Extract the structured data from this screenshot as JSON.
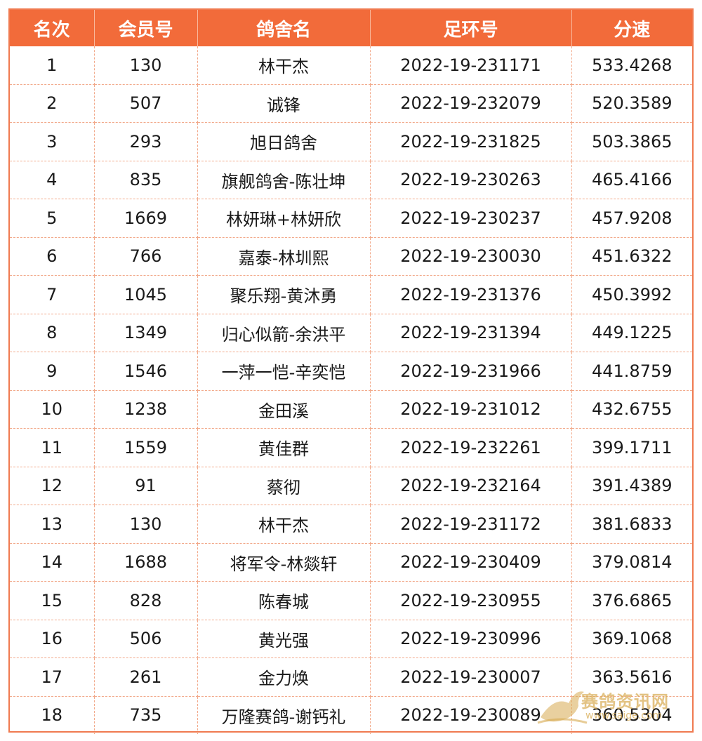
{
  "table": {
    "headers": [
      "名次",
      "会员号",
      "鸽舍名",
      "足环号",
      "分速"
    ],
    "rows": [
      [
        "1",
        "130",
        "林干杰",
        "2022-19-231171",
        "533.4268"
      ],
      [
        "2",
        "507",
        "诚锋",
        "2022-19-232079",
        "520.3589"
      ],
      [
        "3",
        "293",
        "旭日鸽舍",
        "2022-19-231825",
        "503.3865"
      ],
      [
        "4",
        "835",
        "旗舰鸽舍-陈壮坤",
        "2022-19-230263",
        "465.4166"
      ],
      [
        "5",
        "1669",
        "林妍琳+林妍欣",
        "2022-19-230237",
        "457.9208"
      ],
      [
        "6",
        "766",
        "嘉泰-林圳熙",
        "2022-19-230030",
        "451.6322"
      ],
      [
        "7",
        "1045",
        "聚乐翔-黄沐勇",
        "2022-19-231376",
        "450.3992"
      ],
      [
        "8",
        "1349",
        "归心似箭-余洪平",
        "2022-19-231394",
        "449.1225"
      ],
      [
        "9",
        "1546",
        "一萍一恺-辛奕恺",
        "2022-19-231966",
        "441.8759"
      ],
      [
        "10",
        "1238",
        "金田溪",
        "2022-19-231012",
        "432.6755"
      ],
      [
        "11",
        "1559",
        "黄佳群",
        "2022-19-232261",
        "399.1711"
      ],
      [
        "12",
        "91",
        "蔡彻",
        "2022-19-232164",
        "391.4389"
      ],
      [
        "13",
        "130",
        "林干杰",
        "2022-19-231172",
        "381.6833"
      ],
      [
        "14",
        "1688",
        "将军令-林燚轩",
        "2022-19-230409",
        "379.0814"
      ],
      [
        "15",
        "828",
        "陈春城",
        "2022-19-230955",
        "376.6865"
      ],
      [
        "16",
        "506",
        "黄光强",
        "2022-19-230996",
        "369.1068"
      ],
      [
        "17",
        "261",
        "金力焕",
        "2022-19-230007",
        "363.5616"
      ],
      [
        "18",
        "735",
        "万隆赛鸽-谢钙礼",
        "2022-19-230089",
        "360.5304"
      ]
    ]
  },
  "watermark": {
    "text": "赛鸽资讯网",
    "url": "www.saige.com",
    "icon": "pigeon-logo-icon",
    "color": "#d7aa50"
  },
  "colors": {
    "header_bg": "#f26b3a",
    "header_text": "#ffffff",
    "border": "#f07a50"
  }
}
